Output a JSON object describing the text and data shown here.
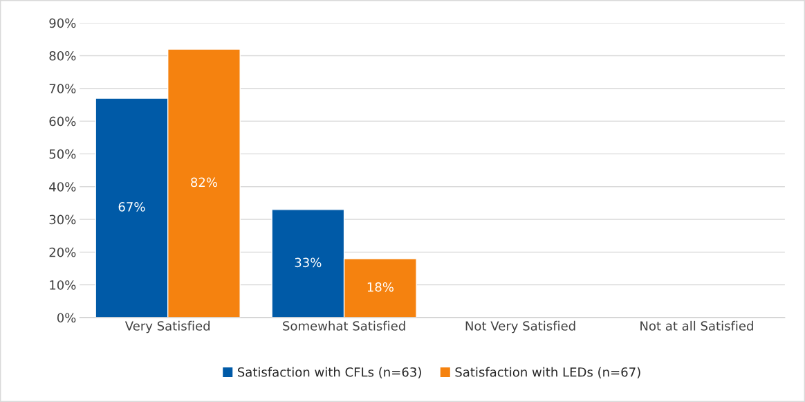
{
  "chart_data": {
    "type": "bar",
    "categories": [
      "Very Satisfied",
      "Somewhat Satisfied",
      "Not Very Satisfied",
      "Not at all Satisfied"
    ],
    "series": [
      {
        "name": "Satisfaction with CFLs (n=63)",
        "color": "#005aa7",
        "values": [
          67,
          33,
          null,
          null
        ],
        "value_labels": [
          "67%",
          "33%",
          null,
          null
        ]
      },
      {
        "name": "Satisfaction with LEDs (n=67)",
        "color": "#f5820f",
        "values": [
          82,
          18,
          null,
          null
        ],
        "value_labels": [
          "82%",
          "18%",
          null,
          null
        ]
      }
    ],
    "ylim": [
      0,
      90
    ],
    "yticks": [
      {
        "value": 0,
        "label": "0%"
      },
      {
        "value": 10,
        "label": "10%"
      },
      {
        "value": 20,
        "label": "20%"
      },
      {
        "value": 30,
        "label": "30%"
      },
      {
        "value": 40,
        "label": "40%"
      },
      {
        "value": 50,
        "label": "50%"
      },
      {
        "value": 60,
        "label": "60%"
      },
      {
        "value": 70,
        "label": "70%"
      },
      {
        "value": 80,
        "label": "80%"
      },
      {
        "value": 90,
        "label": "90%"
      }
    ],
    "grid": "y",
    "legend": "bottom"
  }
}
